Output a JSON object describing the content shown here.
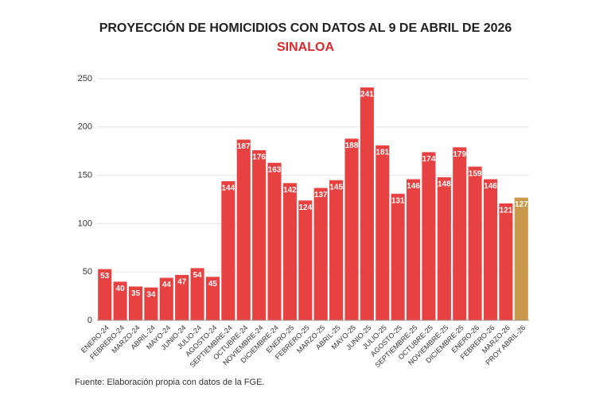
{
  "chart_data": {
    "type": "bar",
    "title": "PROYECCIÓN DE HOMICIDIOS CON DATOS AL 9 DE ABRIL DE 2026",
    "subtitle": "SINALOA",
    "source": "Fuente: Elaboración propia con datos de la FGE.",
    "categories": [
      "ENERO-24",
      "FEBRERO-24",
      "MARZO-24",
      "ABRIL-24",
      "MAYO-24",
      "JUNIO-24",
      "JULIO-24",
      "AGOSTO-24",
      "SEPTIEMBRE-24",
      "OCTUBRE-24",
      "NOVIEMBRE-24",
      "DICIEMBRE-24",
      "ENERO-25",
      "FEBRERO-25",
      "MARZO-25",
      "ABRIL-25",
      "MAYO-25",
      "JUNIO-25",
      "JULIO-25",
      "AGOSTO-25",
      "SEPTIEMBRE-25",
      "OCTUBRE-25",
      "NOVIEMBRE-25",
      "DICIEMBRE-25",
      "ENERO-26",
      "FEBRERO-26",
      "MARZO-26",
      "PROY ABRIL-26"
    ],
    "values": [
      53,
      40,
      35,
      34,
      44,
      47,
      54,
      45,
      144,
      187,
      176,
      163,
      142,
      124,
      137,
      145,
      188,
      241,
      181,
      131,
      146,
      174,
      148,
      179,
      159,
      146,
      121,
      127
    ],
    "colors": [
      "#e84141",
      "#e84141",
      "#e84141",
      "#e84141",
      "#e84141",
      "#e84141",
      "#e84141",
      "#e84141",
      "#e84141",
      "#e84141",
      "#e84141",
      "#e84141",
      "#e84141",
      "#e84141",
      "#e84141",
      "#e84141",
      "#e84141",
      "#e84141",
      "#e84141",
      "#e84141",
      "#e84141",
      "#e84141",
      "#e84141",
      "#e84141",
      "#e84141",
      "#e84141",
      "#e84141",
      "#c9984a"
    ],
    "ylim": [
      0,
      250
    ],
    "yticks": [
      0,
      50,
      100,
      150,
      200,
      250
    ],
    "grid": true
  }
}
